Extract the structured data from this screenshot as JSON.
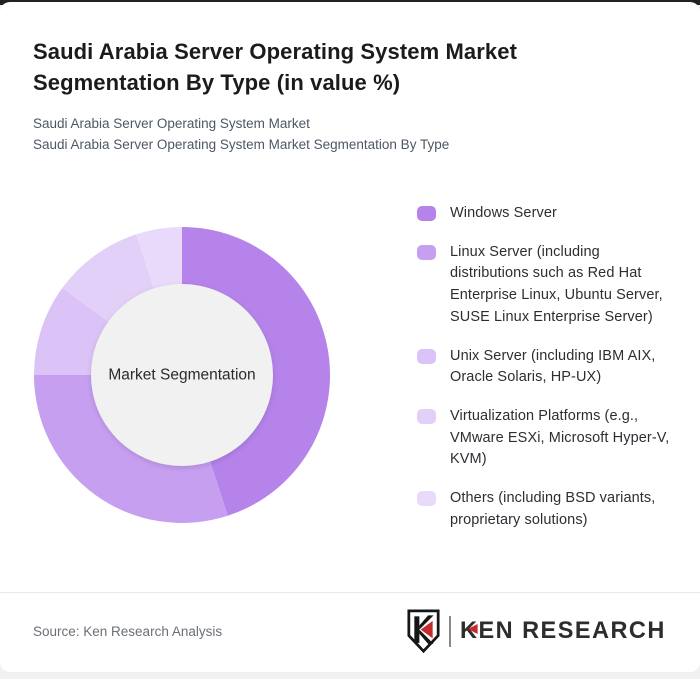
{
  "header": {
    "title": "Saudi Arabia Server Operating System Market Segmentation By Type (in value %)",
    "subtitle_line1": "Saudi Arabia Server Operating System Market",
    "subtitle_line2": "Saudi Arabia Server Operating System Market Segmentation By Type"
  },
  "chart_data": {
    "type": "pie",
    "donut": true,
    "title": "Saudi Arabia Server Operating System Market Segmentation By Type (in value %)",
    "center_label": "Market Segmentation",
    "categories": [
      "Windows Server",
      "Linux Server (including distributions such as Red Hat Enterprise Linux, Ubuntu Server, SUSE Linux Enterprise Server)",
      "Unix Server (including IBM AIX, Oracle Solaris, HP-UX)",
      "Virtualization Platforms (e.g., VMware ESXi, Microsoft Hyper-V, KVM)",
      "Others (including BSD variants, proprietary solutions)"
    ],
    "values": [
      45,
      30,
      10,
      10,
      5
    ],
    "unit": "percent of value",
    "colors": [
      "#b583ea",
      "#c79ff1",
      "#dcc3f7",
      "#e3d0f9",
      "#e9dafb"
    ],
    "start_angle_deg": 0,
    "direction": "clockwise",
    "legend_position": "right",
    "hole_color": "#f1f1f2",
    "center_label_color": "#2b2b2b"
  },
  "legend": {
    "items": [
      {
        "label": "Windows Server",
        "color": "#b583ea"
      },
      {
        "label": "Linux Server (including distributions such as Red Hat Enterprise Linux, Ubuntu Server, SUSE Linux Enterprise Server)",
        "color": "#c79ff1"
      },
      {
        "label": "Unix Server (including IBM AIX, Oracle Solaris, HP-UX)",
        "color": "#dcc3f7"
      },
      {
        "label": "Virtualization Platforms (e.g., VMware ESXi, Microsoft Hyper-V, KVM)",
        "color": "#e3d0f9"
      },
      {
        "label": "Others (including BSD variants, proprietary solutions)",
        "color": "#e9dafb"
      }
    ]
  },
  "footer": {
    "source": "Source: Ken Research Analysis",
    "logo": {
      "monogram": "K",
      "brand_k": "K",
      "brand_rest": "EN RESEARCH",
      "accent_color": "#c62a2d"
    }
  }
}
